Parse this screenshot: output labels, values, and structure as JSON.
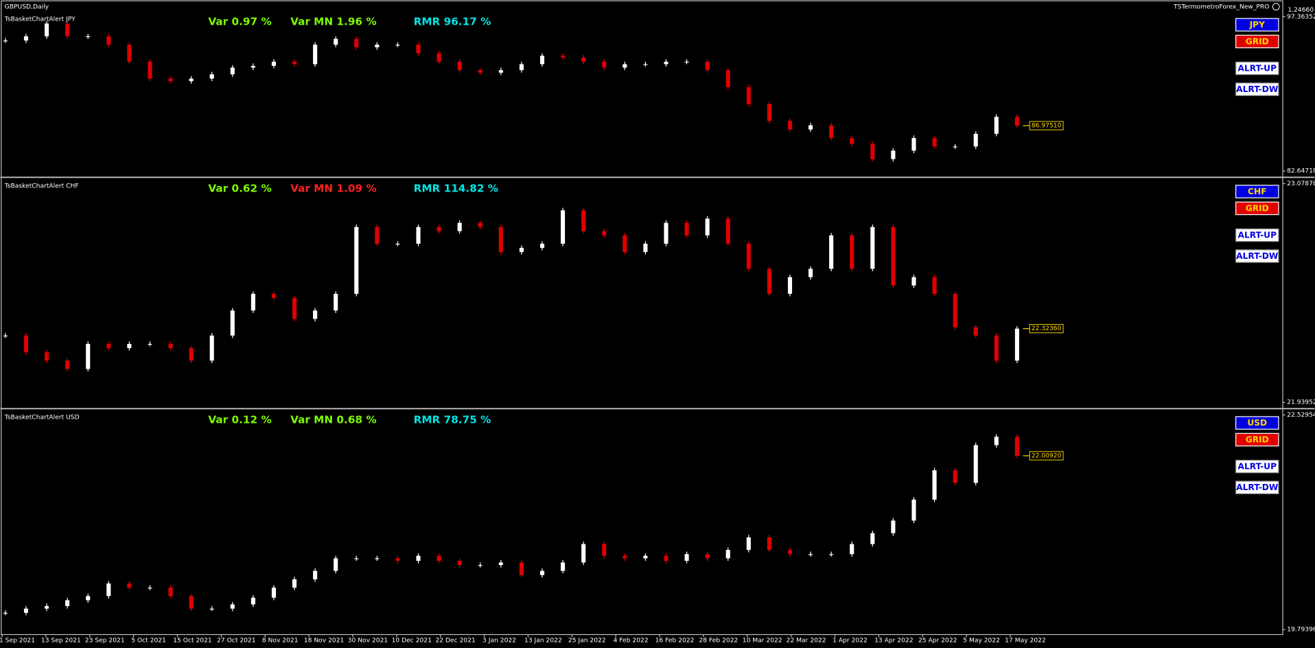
{
  "window": {
    "title": "GBPUSD,Daily",
    "indicator": "TSTermometroForex_New_PRO",
    "price": "1.24660"
  },
  "panels": [
    {
      "name": "TsBasketChartAlert JPY",
      "var": "Var  0.97 %",
      "var_color": "#7cfc00",
      "var_mn": "Var MN  1.96 %",
      "var_mn_color": "#7cfc00",
      "rmr": "RMR 96.17 %",
      "rmr_color": "#00e5e5",
      "buttons": [
        "JPY",
        "GRID",
        "ALRT-UP",
        "ALRT-DW"
      ],
      "ylim": [
        82.64718,
        97.36352
      ],
      "yticks": [
        82.64718,
        97.36352
      ],
      "last": {
        "value": 86.9751,
        "label": "86.97510"
      },
      "closes": [
        95.1,
        95.5,
        96.72,
        95.5,
        95.5,
        94.7,
        93.08,
        91.46,
        91.22,
        91.46,
        91.87,
        92.51,
        92.68,
        93.08,
        92.84,
        94.7,
        95.26,
        94.45,
        94.7,
        94.7,
        93.89,
        93.08,
        92.27,
        92.03,
        92.27,
        92.84,
        93.65,
        93.48,
        93.08,
        92.51,
        92.84,
        92.84,
        93.08,
        93.08,
        92.27,
        90.65,
        89.03,
        87.42,
        86.61,
        87.01,
        85.8,
        85.24,
        83.78,
        84.59,
        85.8,
        84.99,
        84.99,
        86.2,
        87.82,
        86.98
      ]
    },
    {
      "name": "TsBasketChartAlert CHF",
      "var": "Var  0.62 %",
      "var_color": "#7cfc00",
      "var_mn": "Var MN  1.09 %",
      "var_mn_color": "#ff2020",
      "rmr": "RMR 114.82 %",
      "rmr_color": "#00e5e5",
      "buttons": [
        "CHF",
        "GRID",
        "ALRT-UP",
        "ALRT-DW"
      ],
      "ylim": [
        21.93952,
        23.07878
      ],
      "yticks": [
        21.93952,
        23.07878
      ],
      "last": {
        "value": 22.3236,
        "label": "22.32360"
      },
      "closes": [
        22.2875,
        22.2005,
        22.157,
        22.1135,
        22.244,
        22.2222,
        22.244,
        22.244,
        22.2222,
        22.157,
        22.2875,
        22.4179,
        22.5049,
        22.4831,
        22.3744,
        22.4179,
        22.5049,
        22.8527,
        22.7657,
        22.7657,
        22.8527,
        22.831,
        22.8744,
        22.8527,
        22.7223,
        22.744,
        22.7657,
        22.9397,
        22.831,
        22.8092,
        22.7223,
        22.7657,
        22.8744,
        22.8092,
        22.8962,
        22.7657,
        22.6353,
        22.5049,
        22.5918,
        22.6353,
        22.8092,
        22.6353,
        22.8527,
        22.5483,
        22.5918,
        22.5049,
        22.3309,
        22.2875,
        22.157,
        22.3236
      ]
    },
    {
      "name": "TsBasketChartAlert USD",
      "var": "Var  0.12 %",
      "var_color": "#7cfc00",
      "var_mn": "Var MN  0.68 %",
      "var_mn_color": "#7cfc00",
      "rmr": "RMR 78.75 %",
      "rmr_color": "#00e5e5",
      "buttons": [
        "USD",
        "GRID",
        "ALRT-UP",
        "ALRT-DW"
      ],
      "ylim": [
        19.79396,
        22.52954
      ],
      "yticks": [
        19.79396,
        22.52954
      ],
      "last": {
        "value": 22.0092,
        "label": "22.00920"
      },
      "closes": [
        20.0076,
        20.061,
        20.0931,
        20.1679,
        20.2213,
        20.3816,
        20.3282,
        20.3282,
        20.2213,
        20.061,
        20.061,
        20.1145,
        20.2,
        20.3282,
        20.435,
        20.5419,
        20.7022,
        20.7022,
        20.7022,
        20.6701,
        20.7343,
        20.6701,
        20.6167,
        20.6167,
        20.6488,
        20.4885,
        20.5419,
        20.6488,
        20.8839,
        20.7343,
        20.7022,
        20.7343,
        20.6701,
        20.7556,
        20.7022,
        20.8091,
        20.9693,
        20.8091,
        20.7556,
        20.7556,
        20.7556,
        20.8839,
        21.0228,
        21.1831,
        21.4502,
        21.8242,
        21.6639,
        22.1448,
        22.2517,
        22.0092
      ]
    }
  ],
  "dates": [
    "1 Sep 2021",
    "13 Sep 2021",
    "23 Sep 2021",
    "5 Oct 2021",
    "15 Oct 2021",
    "27 Oct 2021",
    "8 Nov 2021",
    "18 Nov 2021",
    "30 Nov 2021",
    "10 Dec 2021",
    "22 Dec 2021",
    "3 Jan 2022",
    "13 Jan 2022",
    "25 Jan 2022",
    "4 Feb 2022",
    "16 Feb 2022",
    "28 Feb 2022",
    "10 Mar 2022",
    "22 Mar 2022",
    "1 Apr 2022",
    "13 Apr 2022",
    "25 Apr 2022",
    "5 May 2022",
    "17 May 2022"
  ]
}
